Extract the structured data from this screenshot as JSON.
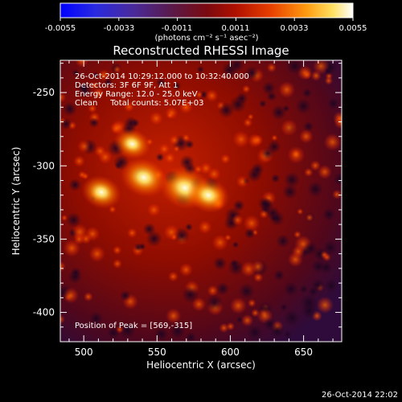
{
  "colorbar": {
    "ticks": [
      "-0.0055",
      "-0.0033",
      "-0.0011",
      "0.0011",
      "0.0033",
      "0.0055"
    ],
    "unit_label": "(photons cm⁻² s⁻¹ asec⁻²)",
    "range": [
      -0.0055,
      0.0055
    ]
  },
  "title": "Reconstructed RHESSI Image",
  "info": {
    "line1": "26-Oct-2014 10:29:12.000 to 10:32:40.000",
    "line2": "Detectors: 3F 6F 9F, Att 1",
    "line3": "Energy Range: 12.0 - 25.0 keV",
    "line4": "Clean     Total counts: 5.07E+03"
  },
  "peak_text": "Position of Peak = [569,-315]",
  "timestamp": "26-Oct-2014 22:02",
  "chart_data": {
    "type": "heatmap",
    "title": "Reconstructed RHESSI Image",
    "xlabel": "Heliocentric X (arcsec)",
    "ylabel": "Heliocentric Y (arcsec)",
    "xlim": [
      484,
      676
    ],
    "ylim": [
      -420,
      -228
    ],
    "xticks": [
      "500",
      "550",
      "600",
      "650"
    ],
    "yticks": [
      "-250",
      "-300",
      "-350",
      "-400"
    ],
    "xtick_values": [
      500,
      550,
      600,
      650
    ],
    "ytick_values": [
      -250,
      -300,
      -350,
      -400
    ],
    "colormap": "hot-purple-blue",
    "sources": [
      {
        "x": 569,
        "y": -315,
        "intensity": 0.0055
      },
      {
        "x": 541,
        "y": -308,
        "intensity": 0.0047
      },
      {
        "x": 585,
        "y": -320,
        "intensity": 0.004
      },
      {
        "x": 512,
        "y": -318,
        "intensity": 0.0035
      },
      {
        "x": 533,
        "y": -285,
        "intensity": 0.003
      }
    ]
  }
}
